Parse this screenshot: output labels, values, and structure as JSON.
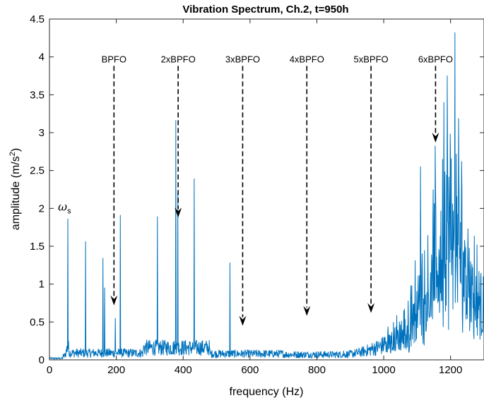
{
  "chart_data": {
    "type": "line",
    "title": "Vibration Spectrum, Ch.2, t=950h",
    "xlabel": "frequency (Hz)",
    "ylabel_prefix": "amplitude (m/s",
    "ylabel_sup": "2",
    "ylabel_suffix": ")",
    "xlim": [
      0,
      1300
    ],
    "ylim": [
      0,
      4.5
    ],
    "xticks": [
      0,
      200,
      400,
      600,
      800,
      1000,
      1200
    ],
    "xtick_labels": [
      "0",
      "200",
      "400",
      "600",
      "800",
      "1000",
      "1200"
    ],
    "yticks": [
      0,
      0.5,
      1,
      1.5,
      2,
      2.5,
      3,
      3.5,
      4,
      4.5
    ],
    "ytick_labels": [
      "0",
      "0.5",
      "1",
      "1.5",
      "2",
      "2.5",
      "3",
      "3.5",
      "4",
      "4.5"
    ],
    "grid": false,
    "line_color": "#0072BD",
    "peak_label": {
      "symbol": "ω",
      "subscript": "s",
      "x": 55,
      "y": 1.86
    },
    "peaks": [
      {
        "x": 55,
        "y": 1.86
      },
      {
        "x": 108,
        "y": 1.56
      },
      {
        "x": 160,
        "y": 1.34
      },
      {
        "x": 165,
        "y": 0.95
      },
      {
        "x": 197,
        "y": 0.55
      },
      {
        "x": 212,
        "y": 1.91
      },
      {
        "x": 323,
        "y": 1.89
      },
      {
        "x": 378,
        "y": 3.16
      },
      {
        "x": 384,
        "y": 2.2
      },
      {
        "x": 433,
        "y": 2.39
      },
      {
        "x": 540,
        "y": 1.28
      },
      {
        "x": 1110,
        "y": 2.55
      },
      {
        "x": 1180,
        "y": 3.4
      },
      {
        "x": 1190,
        "y": 3.75
      },
      {
        "x": 1213,
        "y": 4.32
      }
    ],
    "annotations": [
      {
        "label": "BPFO",
        "x": 193,
        "y_top": 3.9,
        "y_tip": 0.72
      },
      {
        "label": "2xBPFO",
        "x": 385,
        "y_top": 3.9,
        "y_tip": 1.88
      },
      {
        "label": "3xBPFO",
        "x": 578,
        "y_top": 3.9,
        "y_tip": 0.45
      },
      {
        "label": "4xBPFO",
        "x": 770,
        "y_top": 3.9,
        "y_tip": 0.58
      },
      {
        "label": "5xBPFO",
        "x": 962,
        "y_top": 3.9,
        "y_tip": 0.62
      },
      {
        "label": "6xBPFO",
        "x": 1155,
        "y_top": 3.9,
        "y_tip": 2.87
      }
    ]
  }
}
